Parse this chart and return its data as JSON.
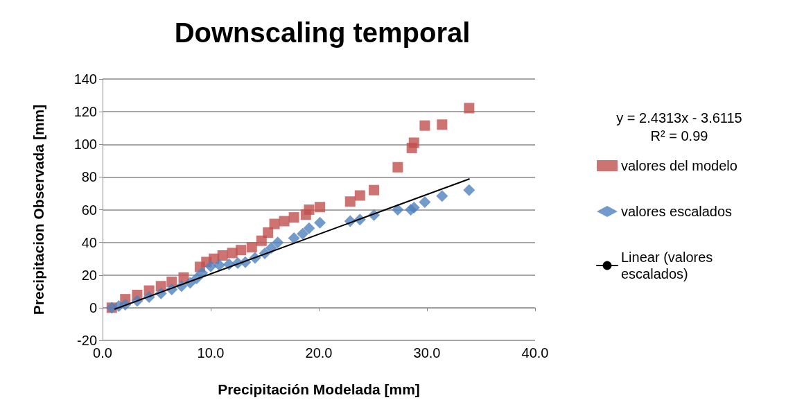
{
  "chart_data": {
    "type": "scatter",
    "title": "Downscaling temporal",
    "xlabel": "Precipitación Modelada [mm]",
    "ylabel": "Precipitacion Observada [mm]",
    "annotations": [
      "y = 2.4313x - 3.6115",
      "R² = 0.99"
    ],
    "xlim": [
      0,
      40
    ],
    "ylim": [
      -20,
      140
    ],
    "xticks": [
      {
        "value": 0,
        "label": "0.0"
      },
      {
        "value": 10,
        "label": "10.0"
      },
      {
        "value": 20,
        "label": "20.0"
      },
      {
        "value": 30,
        "label": "30.0"
      },
      {
        "value": 40,
        "label": "40.0"
      }
    ],
    "yticks": [
      -20,
      0,
      20,
      40,
      60,
      80,
      100,
      120,
      140
    ],
    "grid": "y",
    "legend": "right",
    "series": [
      {
        "name": "valores del modelo",
        "color": "#c0504d",
        "marker": "square",
        "x": [
          0.85,
          2.1,
          3.2,
          4.3,
          5.4,
          6.4,
          7.5,
          9.0,
          9.6,
          10.3,
          11.1,
          12.0,
          12.8,
          13.8,
          14.7,
          15.3,
          15.9,
          16.8,
          17.7,
          18.8,
          19.1,
          20.1,
          22.9,
          23.8,
          25.1,
          27.3,
          28.6,
          28.8,
          29.8,
          31.4,
          33.9
        ],
        "values": [
          0,
          5.2,
          7.8,
          10.5,
          13.2,
          15.9,
          18.5,
          25,
          28,
          30,
          32,
          33.5,
          35.3,
          37,
          41,
          46,
          51.3,
          53,
          55.3,
          57,
          60,
          61.6,
          65,
          68.7,
          72,
          86,
          97.8,
          101,
          111.5,
          112.1,
          122.2
        ]
      },
      {
        "name": "valores escalados",
        "color": "#4f81bd",
        "marker": "diamond",
        "x": [
          0.85,
          1.5,
          2.1,
          3.2,
          4.3,
          5.4,
          6.4,
          7.3,
          8.1,
          8.7,
          9.2,
          10.0,
          10.8,
          11.7,
          12.5,
          13.2,
          14.1,
          15.0,
          15.6,
          16.2,
          17.7,
          18.5,
          19.1,
          20.1,
          22.9,
          23.8,
          25.1,
          27.3,
          28.5,
          28.8,
          29.8,
          31.4,
          33.9
        ],
        "values": [
          0,
          1,
          1.9,
          4.2,
          6.5,
          8.8,
          11.2,
          13.2,
          15.2,
          18,
          21.3,
          25.3,
          26,
          26.6,
          27.3,
          27.9,
          30.5,
          33.3,
          36.5,
          40,
          42.6,
          45.3,
          48.6,
          52,
          53,
          54,
          56.7,
          60,
          60,
          61.3,
          64.7,
          68.4,
          72
        ]
      },
      {
        "name": "Linear (valores escalados)",
        "type": "line",
        "color": "#000000",
        "marker": "none",
        "line_style": "solid",
        "x": [
          1.15,
          33.9
        ],
        "values": [
          -0.8,
          78.8
        ]
      }
    ]
  }
}
